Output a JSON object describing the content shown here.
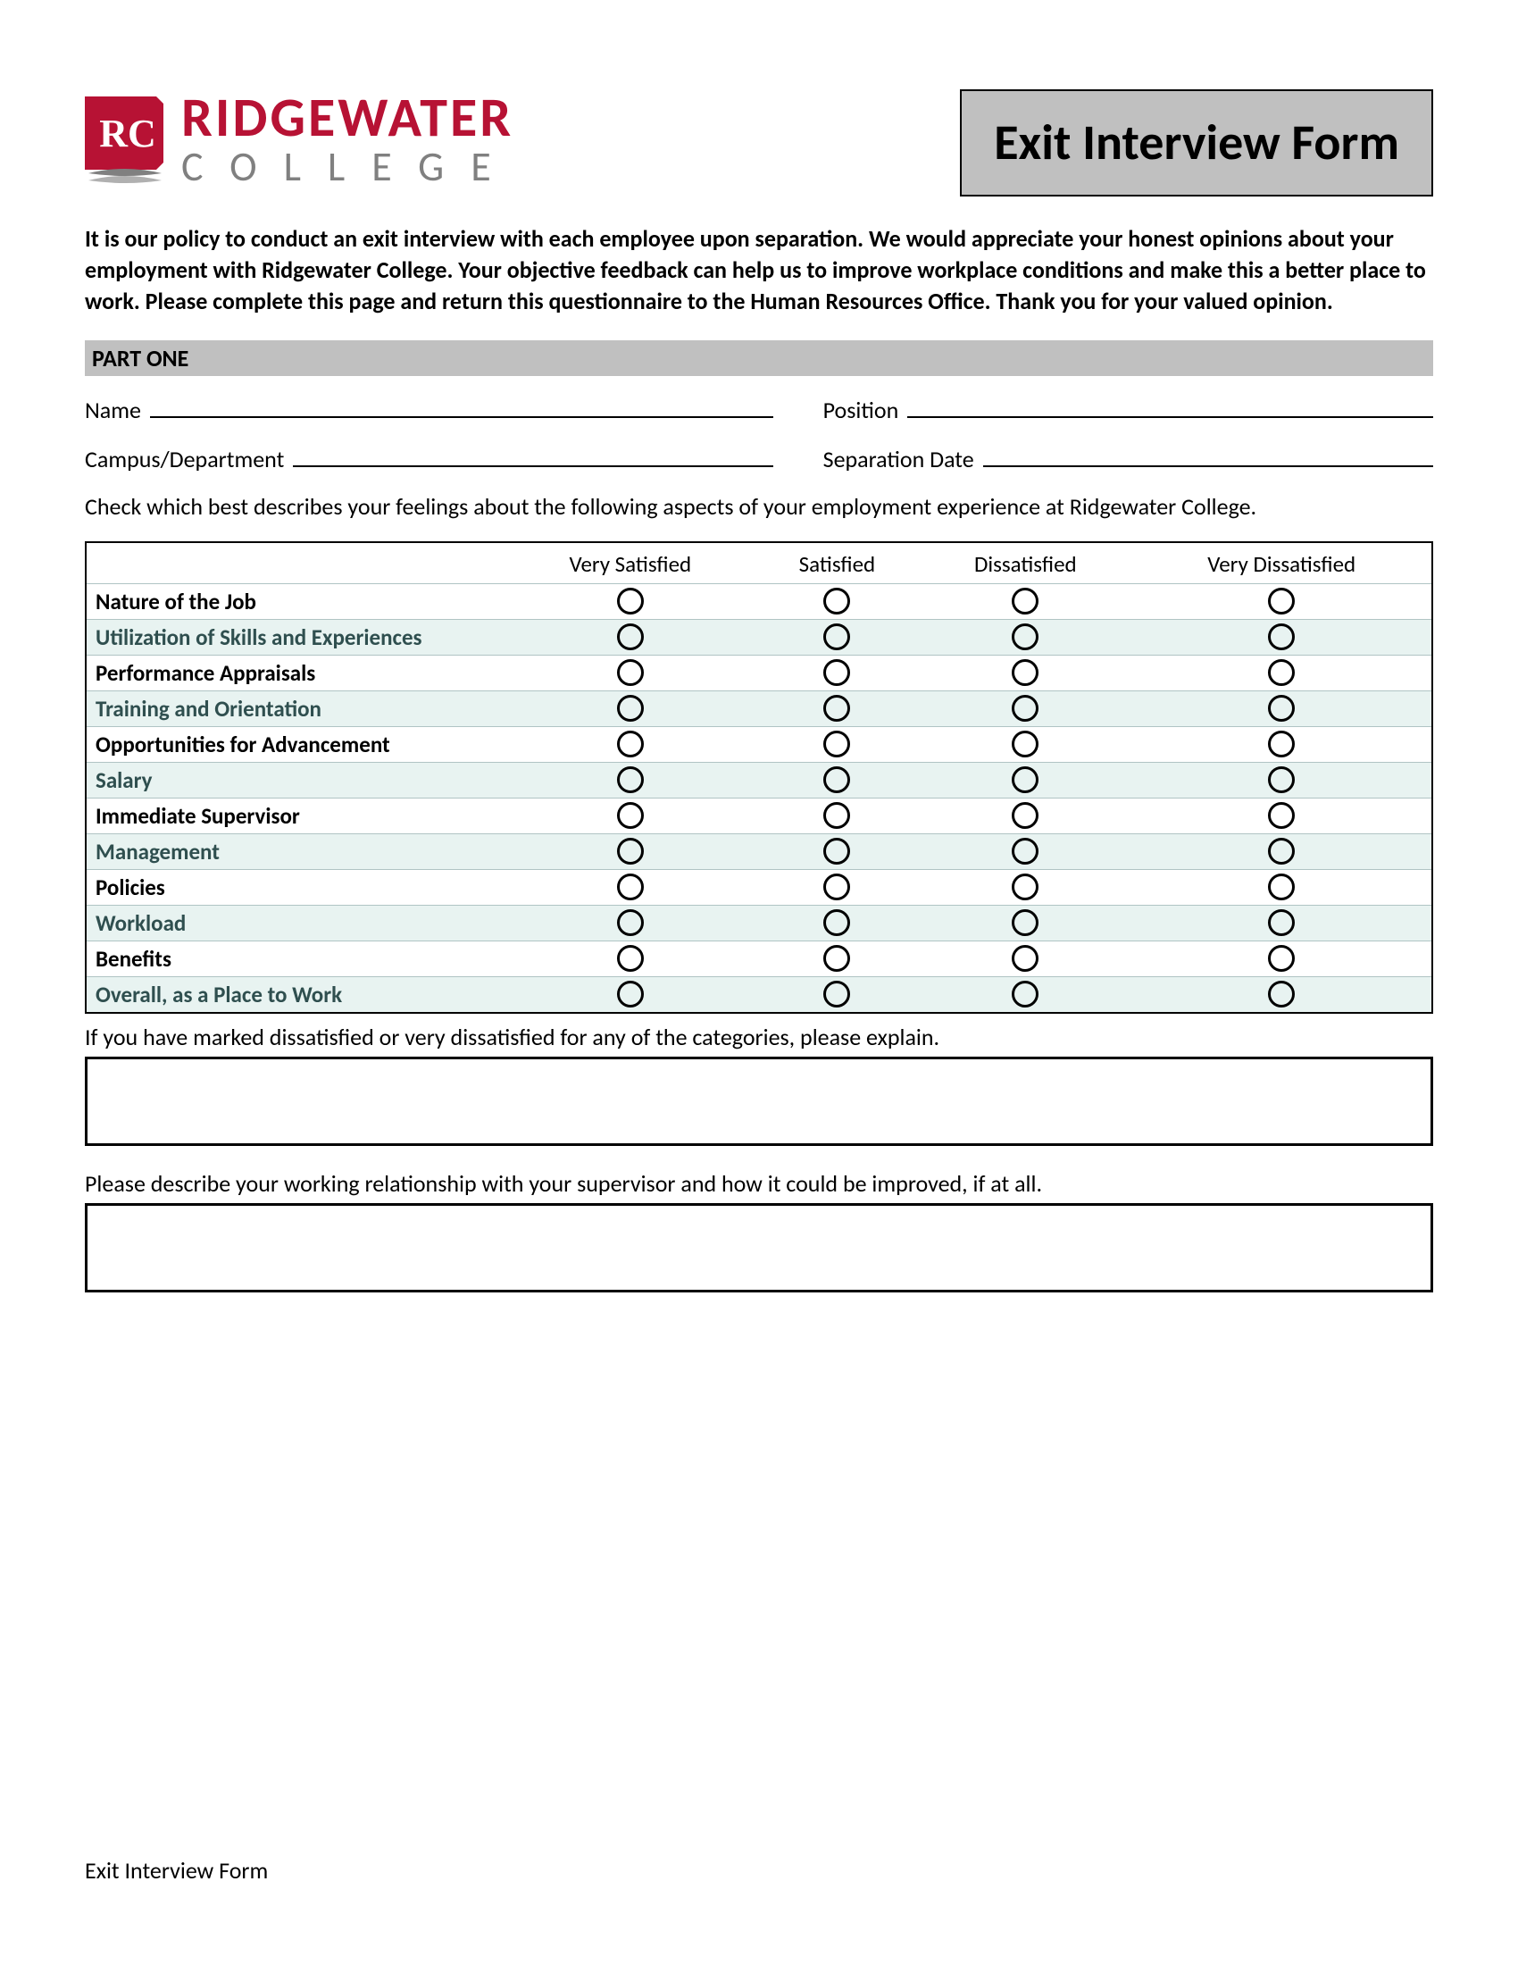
{
  "logo": {
    "abbr": "RC",
    "line1": "RIDGEWATER",
    "line2": "COLLEGE",
    "brand_color": "#B71234",
    "grey_color": "#808080"
  },
  "title": "Exit Interview Form",
  "intro": "It is our policy to conduct an exit interview with each employee upon separation. We would appreciate your honest opinions about your employment with Ridgewater College. Your objective feedback can help us to improve workplace conditions and make this a better place to work. Please complete this page and return this questionnaire to the Human Resources Office. Thank you for your valued opinion.",
  "part_one": {
    "header": "PART ONE",
    "fields": {
      "name": "Name",
      "position": "Position",
      "campus_dept": "Campus/Department",
      "separation_date": "Separation Date"
    },
    "instruction": "Check which best describes your feelings about the following aspects of your employment experience at Ridgewater College.",
    "rating": {
      "columns": [
        "Very Satisfied",
        "Satisfied",
        "Dissatisfied",
        "Very Dissatisfied"
      ],
      "aspects": [
        "Nature of the Job",
        "Utilization of Skills and Experiences",
        "Performance Appraisals",
        "Training and Orientation",
        "Opportunities for Advancement",
        "Salary",
        "Immediate Supervisor",
        "Management",
        "Policies",
        "Workload",
        "Benefits",
        "Overall, as a Place to Work"
      ],
      "alt_row_color": "#E8F3F1",
      "border_color": "#000000"
    },
    "explain1": "If you have marked dissatisfied or very dissatisfied for any of the categories, please explain.",
    "explain2": "Please describe your working relationship with your supervisor and how it could be improved, if at all."
  },
  "footer": "Exit Interview Form"
}
